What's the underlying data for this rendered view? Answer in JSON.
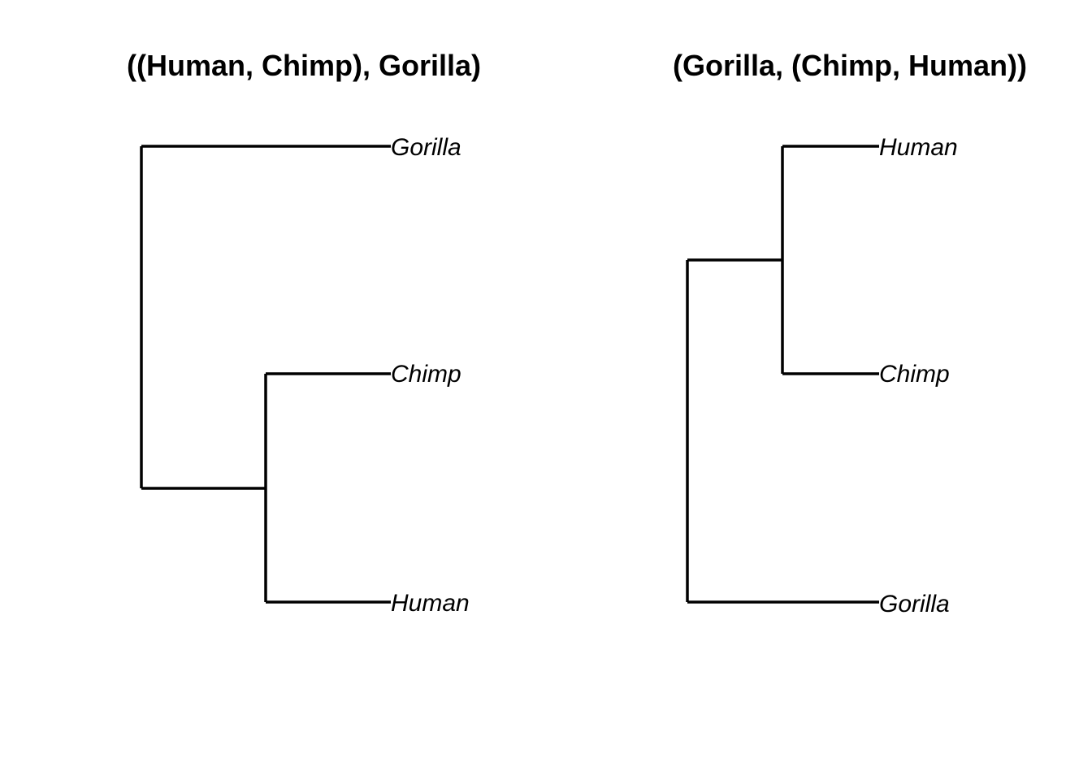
{
  "trees": [
    {
      "title": "((Human, Chimp), Gorilla)",
      "tips": [
        "Gorilla",
        "Chimp",
        "Human"
      ]
    },
    {
      "title": "(Gorilla, (Chimp, Human))",
      "tips": [
        "Human",
        "Chimp",
        "Gorilla"
      ]
    }
  ],
  "colors": {
    "line": "#000000",
    "background": "#ffffff"
  }
}
